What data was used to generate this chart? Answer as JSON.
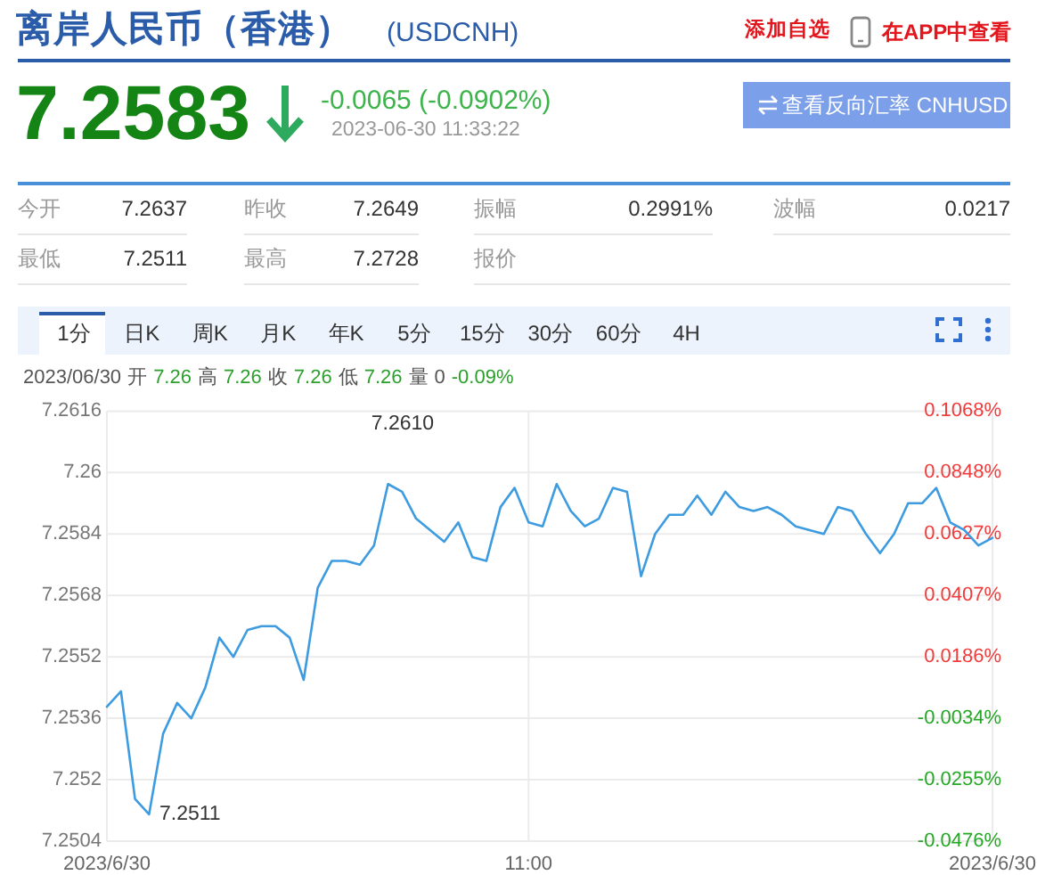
{
  "chart_data": {
    "type": "line",
    "title": "离岸人民币（香港）",
    "subtitle": "(USDCNH)",
    "x": [
      "2023-06-30T10:30",
      "2023-06-30T10:31",
      "2023-06-30T10:32",
      "2023-06-30T10:33",
      "2023-06-30T10:34",
      "2023-06-30T10:35",
      "2023-06-30T10:36",
      "2023-06-30T10:37",
      "2023-06-30T10:38",
      "2023-06-30T10:39",
      "2023-06-30T10:40",
      "2023-06-30T10:41",
      "2023-06-30T10:42",
      "2023-06-30T10:43",
      "2023-06-30T10:44",
      "2023-06-30T10:45",
      "2023-06-30T10:46",
      "2023-06-30T10:47",
      "2023-06-30T10:48",
      "2023-06-30T10:49",
      "2023-06-30T10:50",
      "2023-06-30T10:51",
      "2023-06-30T10:52",
      "2023-06-30T10:53",
      "2023-06-30T10:54",
      "2023-06-30T10:55",
      "2023-06-30T10:56",
      "2023-06-30T10:57",
      "2023-06-30T10:58",
      "2023-06-30T10:59",
      "2023-06-30T11:00",
      "2023-06-30T11:01",
      "2023-06-30T11:02",
      "2023-06-30T11:03",
      "2023-06-30T11:04",
      "2023-06-30T11:05",
      "2023-06-30T11:06",
      "2023-06-30T11:07",
      "2023-06-30T11:08",
      "2023-06-30T11:09",
      "2023-06-30T11:10",
      "2023-06-30T11:11",
      "2023-06-30T11:12",
      "2023-06-30T11:13",
      "2023-06-30T11:14",
      "2023-06-30T11:15",
      "2023-06-30T11:16",
      "2023-06-30T11:17",
      "2023-06-30T11:18",
      "2023-06-30T11:19",
      "2023-06-30T11:20",
      "2023-06-30T11:21",
      "2023-06-30T11:22",
      "2023-06-30T11:23",
      "2023-06-30T11:24",
      "2023-06-30T11:25",
      "2023-06-30T11:26",
      "2023-06-30T11:27",
      "2023-06-30T11:28",
      "2023-06-30T11:29",
      "2023-06-30T11:30",
      "2023-06-30T11:31",
      "2023-06-30T11:32",
      "2023-06-30T11:33"
    ],
    "series": [
      {
        "color": "#3d9be0",
        "values": [
          7.2539,
          7.2543,
          7.2515,
          7.2511,
          7.2532,
          7.254,
          7.2536,
          7.2544,
          7.2557,
          7.2552,
          7.2559,
          7.256,
          7.256,
          7.2557,
          7.2546,
          7.257,
          7.2577,
          7.2577,
          7.2576,
          7.2581,
          7.2597,
          7.2595,
          7.2588,
          7.2585,
          7.2582,
          7.2587,
          7.2578,
          7.2577,
          7.2591,
          7.2596,
          7.2587,
          7.2586,
          7.2597,
          7.259,
          7.2586,
          7.2588,
          7.2596,
          7.2595,
          7.2573,
          7.2584,
          7.2589,
          7.2589,
          7.2594,
          7.2589,
          7.2595,
          7.2591,
          7.259,
          7.2591,
          7.2589,
          7.2586,
          7.2585,
          7.2584,
          7.2591,
          7.259,
          7.2584,
          7.2579,
          7.2584,
          7.2592,
          7.2592,
          7.2596,
          7.2587,
          7.2585,
          7.2581,
          7.2583
        ]
      }
    ],
    "xlim": [
      "2023-06-30T10:30",
      "2023-06-30T11:33"
    ],
    "xticks": [
      {
        "value": "2023-06-30T10:30",
        "label": "2023/6/30"
      },
      {
        "value": "2023-06-30T11:00",
        "label": "11:00"
      },
      {
        "value": "2023-06-30T11:33",
        "label": "2023/6/30"
      }
    ],
    "ylim": [
      7.2504,
      7.2616
    ],
    "yticks": [
      7.2504,
      7.252,
      7.2536,
      7.2552,
      7.2568,
      7.2584,
      7.26,
      7.2616
    ],
    "y2lim": [
      -0.0476,
      0.1068
    ],
    "y2ticks": [
      {
        "value": -0.0476,
        "label": "-0.0476%"
      },
      {
        "value": -0.0255,
        "label": "-0.0255%"
      },
      {
        "value": -0.0034,
        "label": "-0.0034%"
      },
      {
        "value": 0.0186,
        "label": "0.0186%"
      },
      {
        "value": 0.0407,
        "label": "0.0407%"
      },
      {
        "value": 0.0627,
        "label": "0.0627%"
      },
      {
        "value": 0.0848,
        "label": "0.0848%"
      },
      {
        "value": 0.1068,
        "label": "0.1068%"
      }
    ],
    "grid": true,
    "annotations": [
      "7.2610",
      {
        "text": "7.2511",
        "x": "2023-06-30T10:33",
        "y": 7.2511
      },
      "添加自选",
      "在APP中查看",
      "7.2583",
      "-0.0065 (-0.0902%)",
      "2023-06-30 11:33:22",
      "查看反向汇率 CNHUSD",
      "今开",
      "7.2637",
      "昨收",
      "7.2649",
      "振幅",
      "0.2991%",
      "波幅",
      "0.0217",
      "最低",
      "7.2511",
      "最高",
      "7.2728",
      "报价",
      "1分",
      "日K",
      "周K",
      "月K",
      "年K",
      "5分",
      "15分",
      "30分",
      "60分",
      "4H",
      "2023/06/30",
      "开",
      "7.26",
      "高",
      "7.26",
      "收",
      "7.26",
      "低",
      "7.26",
      "量",
      "0",
      "-0.09%"
    ]
  }
}
